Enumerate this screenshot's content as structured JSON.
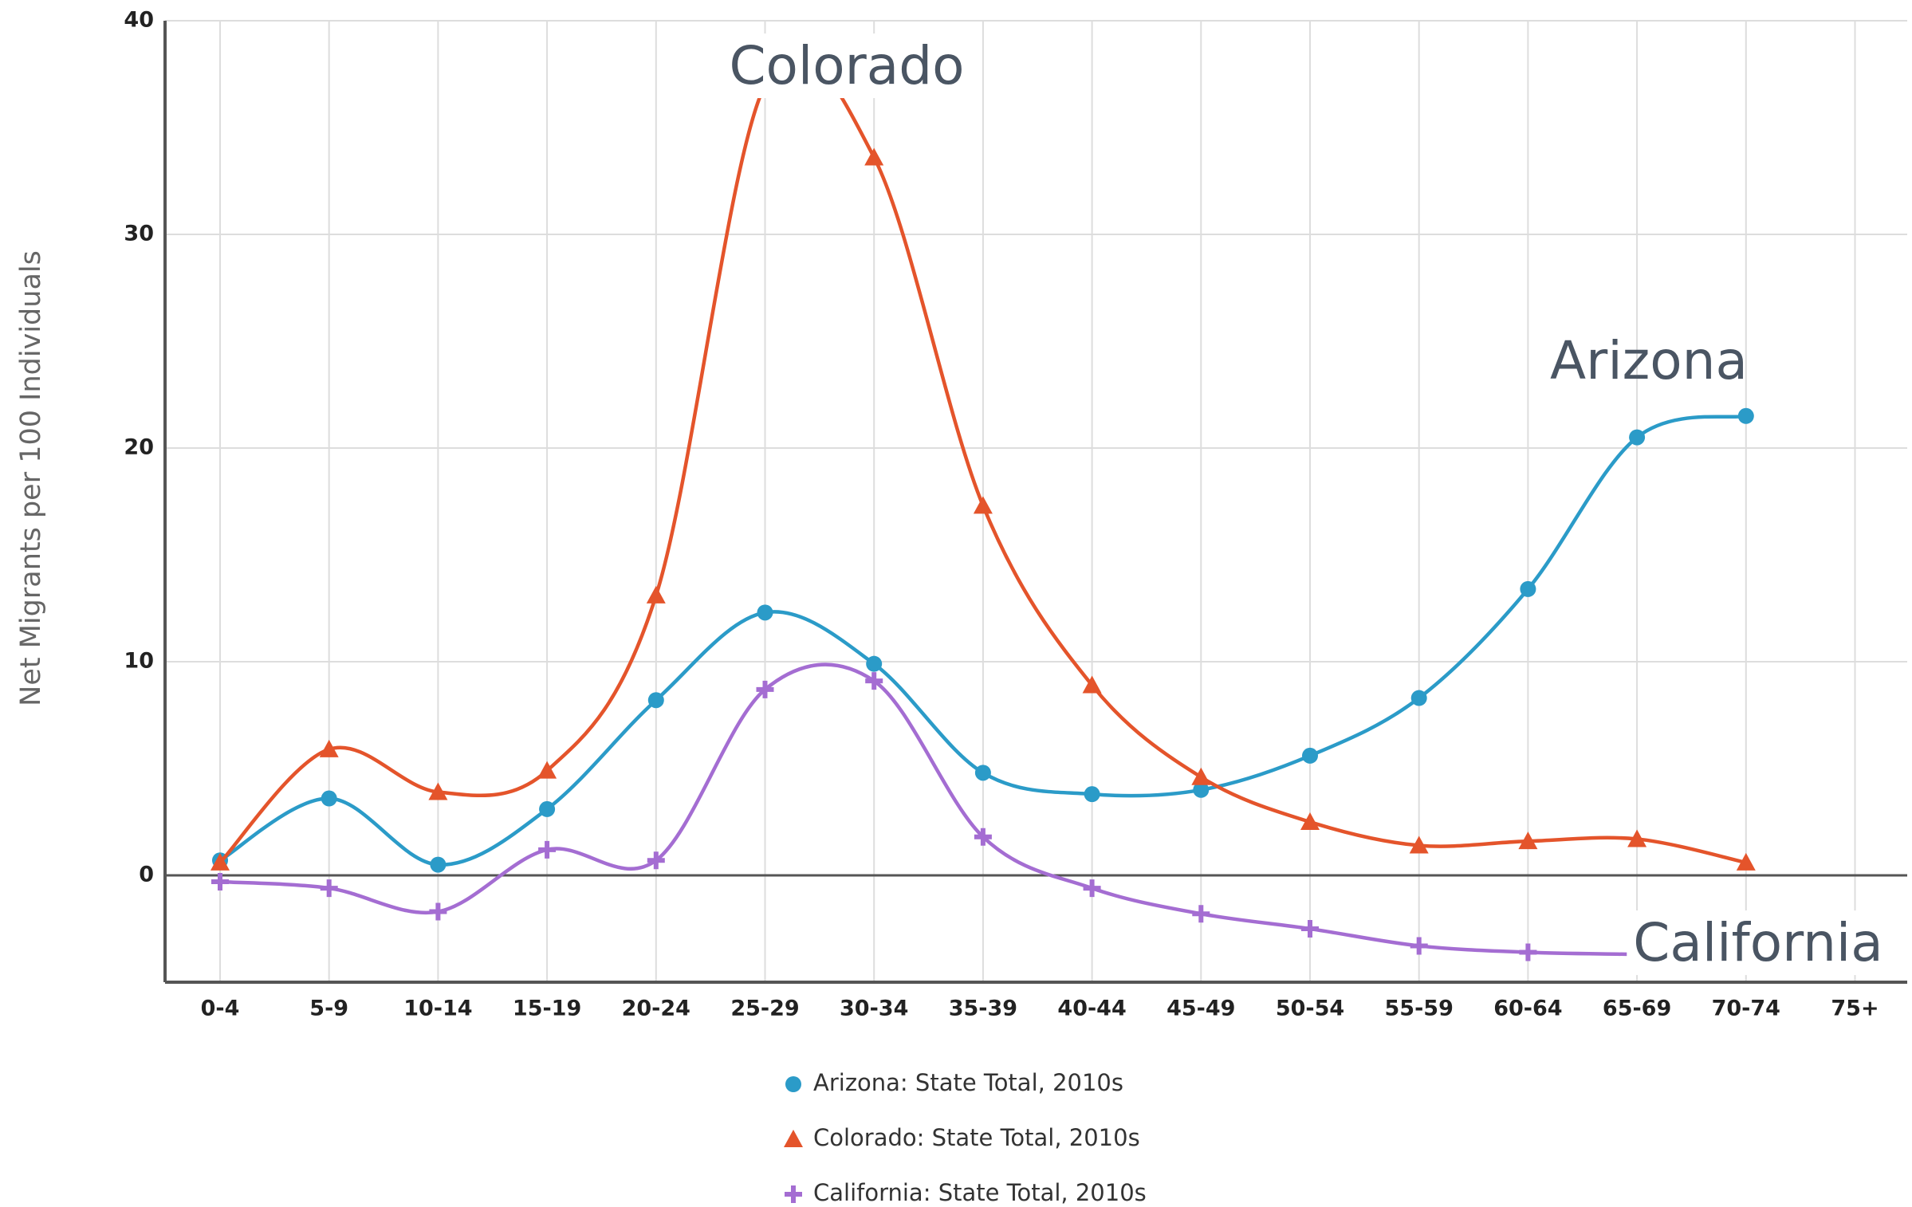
{
  "chart_data": {
    "type": "line",
    "y_label": "Net Migrants per 100 Individuals",
    "categories": [
      "0-4",
      "5-9",
      "10-14",
      "15-19",
      "20-24",
      "25-29",
      "30-34",
      "35-39",
      "40-44",
      "45-49",
      "50-54",
      "55-59",
      "60-64",
      "65-69",
      "70-74",
      "75+"
    ],
    "series": [
      {
        "name": "Arizona: State Total, 2010s",
        "color": "#2b9bc8",
        "marker": "circle",
        "values": [
          0.7,
          3.6,
          0.5,
          3.1,
          8.2,
          12.3,
          9.9,
          4.8,
          3.8,
          4.0,
          5.6,
          8.3,
          13.4,
          20.5,
          21.5,
          null
        ]
      },
      {
        "name": "Colorado: State Total, 2010s",
        "color": "#e4542b",
        "marker": "triangle",
        "values": [
          0.6,
          5.9,
          3.9,
          4.9,
          13.1,
          37,
          33.6,
          17.3,
          8.9,
          4.6,
          2.5,
          1.4,
          1.6,
          1.7,
          0.6,
          null
        ]
      },
      {
        "name": "California: State Total, 2010s",
        "color": "#a46dd2",
        "marker": "plus",
        "values": [
          -0.3,
          -0.6,
          -1.7,
          1.2,
          0.7,
          8.7,
          9.1,
          1.8,
          -0.6,
          -1.8,
          -2.5,
          -3.3,
          -3.6,
          -3.7,
          -3.8,
          null
        ]
      }
    ],
    "annotations": [
      "Colorado",
      "Arizona",
      "California"
    ],
    "ylim": [
      -5,
      40
    ],
    "yticks": [
      0,
      10,
      20,
      30,
      40
    ],
    "grid": true
  }
}
